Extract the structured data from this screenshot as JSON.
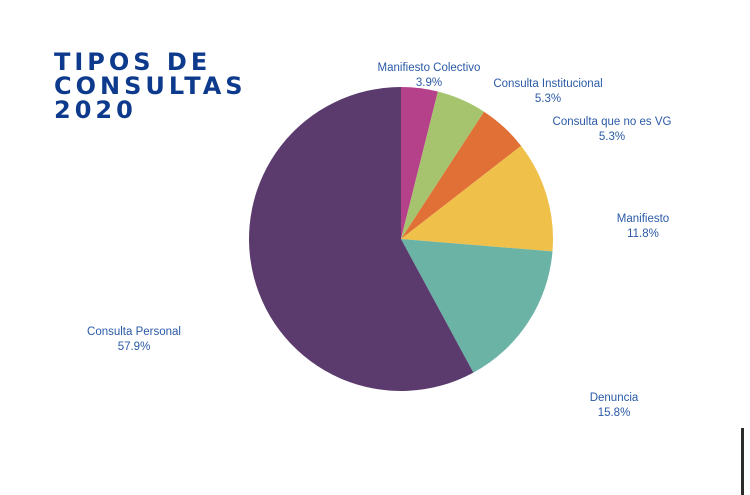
{
  "title_lines": [
    "TIPOS DE",
    "CONSULTAS",
    "2020"
  ],
  "chart_data": {
    "type": "pie",
    "title": "TIPOS DE CONSULTAS 2020",
    "start_angle_deg": 0,
    "direction": "clockwise",
    "slices": [
      {
        "label": "Manifiesto Colectivo",
        "value": 3.9,
        "display": "3.9%",
        "color": "#b5418b"
      },
      {
        "label": "Consulta Institucional",
        "value": 5.3,
        "display": "5.3%",
        "color": "#a6c46e"
      },
      {
        "label": "Consulta que no es VG",
        "value": 5.3,
        "display": "5.3%",
        "color": "#e07036"
      },
      {
        "label": "Manifiesto",
        "value": 11.8,
        "display": "11.8%",
        "color": "#efc04a"
      },
      {
        "label": "Denuncia",
        "value": 15.8,
        "display": "15.8%",
        "color": "#6ab3a5"
      },
      {
        "label": "Consulta Personal",
        "value": 57.9,
        "display": "57.9%",
        "color": "#5b3b6e"
      }
    ]
  }
}
